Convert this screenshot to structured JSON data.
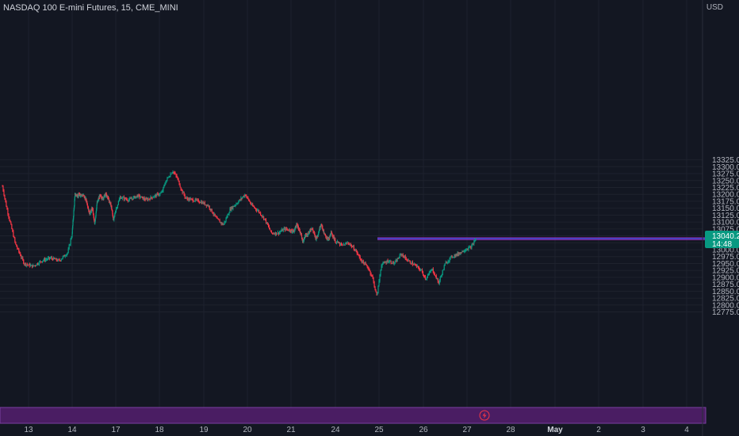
{
  "header": {
    "symbol": "NASDAQ 100 E-mini Futures",
    "interval": "15",
    "exchange": "CME_MINI"
  },
  "price_scale": {
    "currency": "USD",
    "last_price": "13040.25",
    "countdown": "14:48",
    "badge_color": "#089981"
  },
  "colors": {
    "background": "#131722",
    "up": "#089981",
    "down": "#f23645",
    "level_line": "#9c27b0",
    "bottom_band": "#4a1d63"
  },
  "icons": {
    "bolt": "lightning-bolt-icon"
  },
  "chart_data": {
    "type": "candlestick",
    "title": "NASDAQ 100 E-mini Futures, 15, CME_MINI",
    "ylim": [
      12765,
      13340
    ],
    "y_ticks": [
      "13325.00",
      "13300.00",
      "13275.00",
      "13250.00",
      "13225.00",
      "13200.00",
      "13175.00",
      "13150.00",
      "13125.00",
      "13100.00",
      "13075.00",
      "13050.00",
      "13025.00",
      "13000.00",
      "12975.00",
      "12950.00",
      "12925.00",
      "12900.00",
      "12875.00",
      "12850.00",
      "12825.00",
      "12800.00",
      "12775.00"
    ],
    "x_ticks": [
      {
        "label": "13",
        "day": 13
      },
      {
        "label": "14",
        "day": 14
      },
      {
        "label": "17",
        "day": 17
      },
      {
        "label": "18",
        "day": 18
      },
      {
        "label": "19",
        "day": 19
      },
      {
        "label": "20",
        "day": 20
      },
      {
        "label": "21",
        "day": 21
      },
      {
        "label": "24",
        "day": 24
      },
      {
        "label": "25",
        "day": 25
      },
      {
        "label": "26",
        "day": 26
      },
      {
        "label": "27",
        "day": 27
      },
      {
        "label": "28",
        "day": 28
      },
      {
        "label": "May",
        "day": 29,
        "bold": true
      },
      {
        "label": "2",
        "day": 30
      },
      {
        "label": "3",
        "day": 31
      },
      {
        "label": "4",
        "day": 32
      }
    ],
    "horizontal_levels": [
      13036,
      13040,
      13043
    ],
    "path": [
      [
        12.4,
        13230
      ],
      [
        12.5,
        13150
      ],
      [
        12.7,
        13020
      ],
      [
        12.9,
        12950
      ],
      [
        13.1,
        12940
      ],
      [
        13.3,
        12960
      ],
      [
        13.5,
        12970
      ],
      [
        13.7,
        12960
      ],
      [
        13.9,
        12990
      ],
      [
        14.0,
        13060
      ],
      [
        14.2,
        13200
      ],
      [
        14.4,
        13195
      ],
      [
        14.6,
        13200
      ],
      [
        14.8,
        13195
      ],
      [
        15.0,
        13175
      ],
      [
        15.2,
        13130
      ],
      [
        15.4,
        13150
      ],
      [
        15.55,
        13090
      ],
      [
        15.7,
        13165
      ],
      [
        15.9,
        13195
      ],
      [
        16.1,
        13185
      ],
      [
        16.3,
        13200
      ],
      [
        16.5,
        13185
      ],
      [
        16.7,
        13155
      ],
      [
        16.85,
        13105
      ],
      [
        17.0,
        13145
      ],
      [
        17.1,
        13190
      ],
      [
        17.3,
        13180
      ],
      [
        17.5,
        13195
      ],
      [
        17.7,
        13180
      ],
      [
        17.9,
        13195
      ],
      [
        18.05,
        13205
      ],
      [
        18.15,
        13250
      ],
      [
        18.3,
        13285
      ],
      [
        18.4,
        13260
      ],
      [
        18.5,
        13215
      ],
      [
        18.6,
        13185
      ],
      [
        18.75,
        13180
      ],
      [
        18.9,
        13175
      ],
      [
        19.1,
        13160
      ],
      [
        19.3,
        13110
      ],
      [
        19.45,
        13090
      ],
      [
        19.6,
        13145
      ],
      [
        19.8,
        13175
      ],
      [
        19.95,
        13200
      ],
      [
        20.1,
        13160
      ],
      [
        20.25,
        13140
      ],
      [
        20.4,
        13110
      ],
      [
        20.55,
        13060
      ],
      [
        20.7,
        13060
      ],
      [
        20.85,
        13075
      ],
      [
        21.0,
        13070
      ],
      [
        21.2,
        13065
      ],
      [
        21.35,
        13090
      ],
      [
        21.5,
        13080
      ],
      [
        21.65,
        13060
      ],
      [
        21.8,
        13030
      ],
      [
        21.95,
        13050
      ],
      [
        22.1,
        13055
      ],
      [
        22.25,
        13065
      ],
      [
        22.4,
        13080
      ],
      [
        22.55,
        13060
      ],
      [
        22.7,
        13040
      ],
      [
        22.85,
        13060
      ],
      [
        23.0,
        13090
      ],
      [
        23.1,
        13085
      ],
      [
        23.25,
        13055
      ],
      [
        23.4,
        13045
      ],
      [
        23.55,
        13035
      ],
      [
        23.7,
        13060
      ],
      [
        23.85,
        13050
      ],
      [
        24.0,
        13030
      ],
      [
        24.15,
        13015
      ],
      [
        24.3,
        13025
      ],
      [
        24.45,
        13000
      ],
      [
        24.6,
        12960
      ],
      [
        24.75,
        12935
      ],
      [
        24.85,
        12900
      ],
      [
        24.95,
        12830
      ],
      [
        25.05,
        12945
      ],
      [
        25.2,
        12960
      ],
      [
        25.35,
        12950
      ],
      [
        25.5,
        12985
      ],
      [
        25.65,
        12960
      ],
      [
        25.8,
        12945
      ],
      [
        25.95,
        12925
      ],
      [
        26.05,
        12895
      ],
      [
        26.2,
        12930
      ],
      [
        26.35,
        12880
      ],
      [
        26.5,
        12950
      ],
      [
        26.65,
        12975
      ],
      [
        26.8,
        12985
      ],
      [
        26.95,
        13000
      ],
      [
        27.1,
        13010
      ],
      [
        27.2,
        13040
      ]
    ]
  }
}
